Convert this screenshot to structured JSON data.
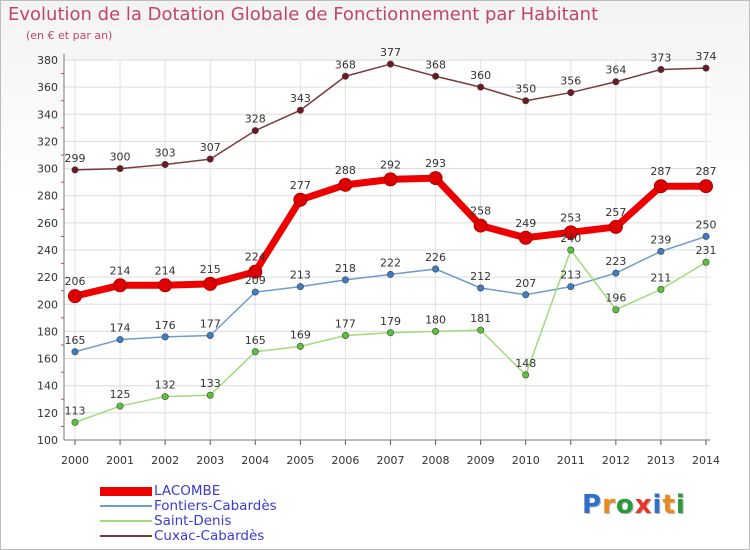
{
  "title": "Evolution de la Dotation Globale de Fonctionnement par Habitant",
  "subtitle": "(en € et par an)",
  "logo": {
    "letters": [
      {
        "char": "P",
        "color": "#2f6fc9"
      },
      {
        "char": "r",
        "color": "#e98a1e"
      },
      {
        "char": "o",
        "color": "#2a9a3a"
      },
      {
        "char": "x",
        "color": "#e4362b"
      },
      {
        "char": "i",
        "color": "#2f6fc9"
      },
      {
        "char": "t",
        "color": "#e98a1e"
      },
      {
        "char": "i",
        "color": "#2a9a3a"
      }
    ]
  },
  "chart_data": {
    "type": "line",
    "title": "Evolution de la Dotation Globale de Fonctionnement par Habitant",
    "ylabel": "(en € et par an)",
    "xlabel": "",
    "ylim": [
      100,
      380
    ],
    "yticks": [
      100,
      120,
      140,
      160,
      180,
      200,
      220,
      240,
      260,
      280,
      300,
      320,
      340,
      360,
      380
    ],
    "grid": true,
    "categories": [
      "2000",
      "2001",
      "2002",
      "2003",
      "2004",
      "2005",
      "2006",
      "2007",
      "2008",
      "2009",
      "2010",
      "2011",
      "2012",
      "2013",
      "2014"
    ],
    "series": [
      {
        "name": "LACOMBE",
        "color": "#ee0000",
        "marker": "#dd0000",
        "bold": true,
        "values": [
          206,
          214,
          214,
          215,
          224,
          277,
          288,
          292,
          293,
          258,
          249,
          253,
          257,
          287,
          287
        ]
      },
      {
        "name": "Fontiers-Cabardès",
        "color": "#6f9ccf",
        "marker": "#3d7dc4",
        "bold": false,
        "values": [
          165,
          174,
          176,
          177,
          209,
          213,
          218,
          222,
          226,
          212,
          207,
          213,
          223,
          239,
          250
        ]
      },
      {
        "name": "Saint-Denis",
        "color": "#9fdc7a",
        "marker": "#5cc23a",
        "bold": false,
        "values": [
          113,
          125,
          132,
          133,
          165,
          169,
          177,
          179,
          180,
          181,
          148,
          240,
          196,
          211,
          231
        ]
      },
      {
        "name": "Cuxac-Cabardès",
        "color": "#7a3a3a",
        "marker": "#6b1a24",
        "bold": false,
        "values": [
          299,
          300,
          303,
          307,
          328,
          343,
          368,
          377,
          368,
          360,
          350,
          356,
          364,
          373,
          374
        ]
      }
    ]
  }
}
